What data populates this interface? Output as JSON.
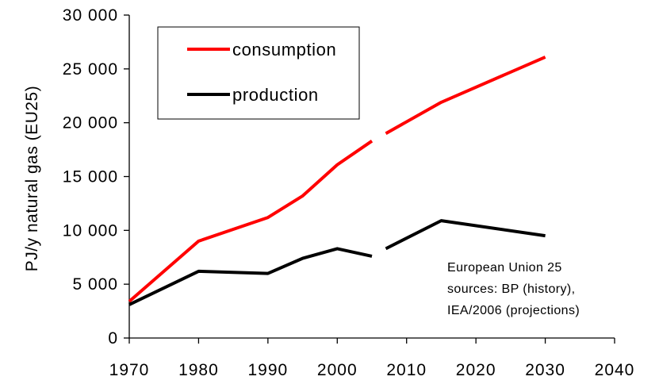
{
  "chart_data": {
    "type": "line",
    "title": "",
    "xlabel": "",
    "ylabel": "PJ/y natural gas (EU25)",
    "xlim": [
      1970,
      2040
    ],
    "ylim": [
      0,
      30000
    ],
    "x_ticks": [
      1970,
      1980,
      1990,
      2000,
      2010,
      2020,
      2030,
      2040
    ],
    "x_tick_labels": [
      "1970",
      "1980",
      "1990",
      "2000",
      "2010",
      "2020",
      "2030",
      "2040"
    ],
    "y_ticks": [
      0,
      5000,
      10000,
      15000,
      20000,
      25000,
      30000
    ],
    "y_tick_labels": [
      "0",
      "5 000",
      "10 000",
      "15 000",
      "20 000",
      "25 000",
      "30 000"
    ],
    "grid": false,
    "legend_position": "top-left",
    "series": [
      {
        "name": "consumption",
        "color": "#ff0000",
        "segments": [
          {
            "x": [
              1970,
              1980,
              1990,
              1995,
              2000,
              2005
            ],
            "y": [
              3400,
              9000,
              11200,
              13200,
              16100,
              18300
            ]
          },
          {
            "x": [
              2007,
              2015,
              2030
            ],
            "y": [
              19000,
              21900,
              26100
            ]
          }
        ]
      },
      {
        "name": "production",
        "color": "#000000",
        "segments": [
          {
            "x": [
              1970,
              1980,
              1990,
              1995,
              2000,
              2005
            ],
            "y": [
              3100,
              6200,
              6000,
              7400,
              8300,
              7600
            ]
          },
          {
            "x": [
              2007,
              2015,
              2030
            ],
            "y": [
              8300,
              10900,
              9500
            ]
          }
        ]
      }
    ],
    "annotation": {
      "lines": [
        "European Union 25",
        "sources: BP (history),",
        "IEA/2006 (projections)"
      ]
    }
  }
}
